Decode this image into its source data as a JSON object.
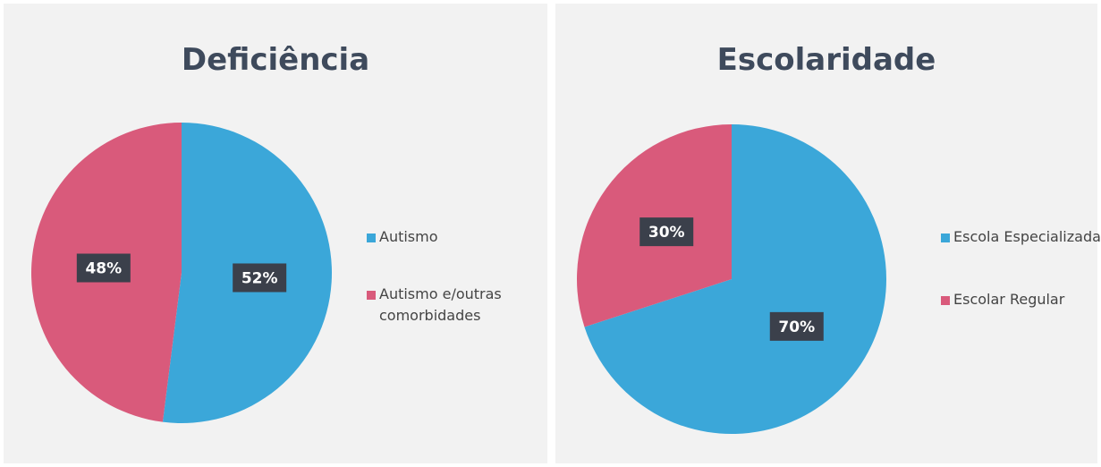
{
  "chart_data": [
    {
      "type": "pie",
      "title": "Deficiência",
      "categories": [
        "Autismo",
        "Autismo e/outras comorbidades"
      ],
      "values": [
        52,
        48
      ],
      "value_labels": [
        "52%",
        "48%"
      ],
      "colors": [
        "#3ba7d9",
        "#d95a7b"
      ]
    },
    {
      "type": "pie",
      "title": "Escolaridade",
      "categories": [
        "Escola Especializada",
        "Escolar Regular"
      ],
      "values": [
        70,
        30
      ],
      "value_labels": [
        "70%",
        "30%"
      ],
      "colors": [
        "#3ba7d9",
        "#d95a7b"
      ]
    }
  ]
}
